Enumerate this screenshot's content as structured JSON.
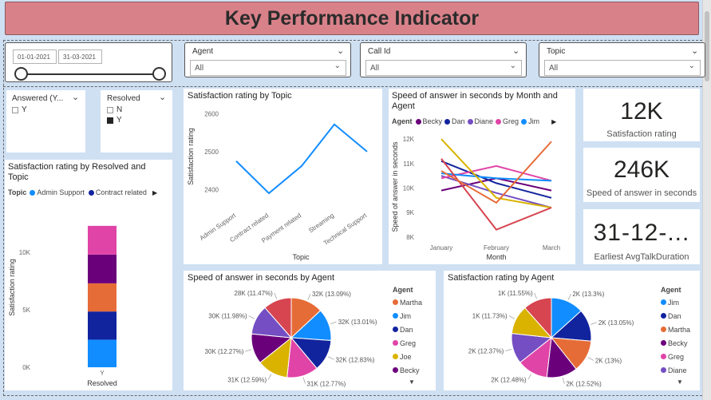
{
  "header": {
    "title": "Key Performance Indicator"
  },
  "date_slicer": {
    "start": "01-01-2021",
    "end": "31-03-2021"
  },
  "filters": {
    "agent": {
      "label": "Agent",
      "value": "All"
    },
    "callid": {
      "label": "Call Id",
      "value": "All"
    },
    "topic": {
      "label": "Topic",
      "value": "All"
    }
  },
  "answered_slicer": {
    "title": "Answered (Y...",
    "options": [
      "Y"
    ]
  },
  "resolved_slicer": {
    "title": "Resolved",
    "options": [
      "N",
      "Y"
    ],
    "selected": "Y"
  },
  "kpis": [
    {
      "value": "12K",
      "label": "Satisfaction rating"
    },
    {
      "value": "246K",
      "label": "Speed of answer in seconds"
    },
    {
      "value": "31-12-...",
      "label": "Earliest AvgTalkDuration"
    }
  ],
  "chart_data": [
    {
      "id": "stacked",
      "type": "bar",
      "title": "Satisfaction rating by Resolved and Topic",
      "legend_title": "Topic",
      "legend": [
        "Admin Support",
        "Contract related"
      ],
      "xlabel": "Resolved",
      "ylabel": "Satisfaction rating",
      "categories": [
        "Y"
      ],
      "ylim": [
        0,
        12500
      ],
      "yticks": [
        "0K",
        "5K",
        "10K"
      ],
      "series": [
        {
          "name": "Admin Support",
          "values": [
            2400
          ],
          "color": "#118DFF"
        },
        {
          "name": "Contract related",
          "values": [
            2450
          ],
          "color": "#12239E"
        },
        {
          "name": "",
          "values": [
            2450
          ],
          "color": "#E66C37"
        },
        {
          "name": "",
          "values": [
            2500
          ],
          "color": "#6B007B"
        },
        {
          "name": "",
          "values": [
            2500
          ],
          "color": "#E044A7"
        }
      ]
    },
    {
      "id": "topicline",
      "type": "line",
      "title": "Satisfaction rating by Topic",
      "xlabel": "Topic",
      "ylabel": "Satisfaction rating",
      "categories": [
        "Admin Support",
        "Contract related",
        "Payment related",
        "Streaming",
        "Technical Support"
      ],
      "values": [
        2475,
        2390,
        2462,
        2572,
        2500
      ],
      "ylim": [
        2350,
        2620
      ],
      "yticks": [
        2400,
        2500,
        2600
      ],
      "color": "#118DFF"
    },
    {
      "id": "monthline",
      "type": "line",
      "title": "Speed of answer in seconds by Month and Agent",
      "legend_title": "Agent",
      "xlabel": "Month",
      "ylabel": "Speed of answer in seconds",
      "categories": [
        "January",
        "February",
        "March"
      ],
      "ylim": [
        7800,
        12300
      ],
      "yticks": [
        "8K",
        "9K",
        "10K",
        "11K",
        "12K"
      ],
      "series": [
        {
          "name": "Becky",
          "values": [
            9900,
            10400,
            9900
          ],
          "color": "#6B007B"
        },
        {
          "name": "Dan",
          "values": [
            11100,
            10200,
            9600
          ],
          "color": "#12239E"
        },
        {
          "name": "Diane",
          "values": [
            10500,
            9800,
            9200
          ],
          "color": "#744EC2"
        },
        {
          "name": "Greg",
          "values": [
            10400,
            10900,
            10300
          ],
          "color": "#E044A7"
        },
        {
          "name": "Jim",
          "values": [
            10600,
            10400,
            10300
          ],
          "color": "#118DFF"
        },
        {
          "name": "",
          "values": [
            12000,
            9600,
            9200
          ],
          "color": "#D9B300"
        },
        {
          "name": "",
          "values": [
            11200,
            8300,
            9200
          ],
          "color": "#D64550"
        },
        {
          "name": "",
          "values": [
            10700,
            9400,
            11900
          ],
          "color": "#E66C37"
        }
      ]
    },
    {
      "id": "pie1",
      "type": "pie",
      "title": "Speed of answer in seconds by Agent",
      "legend_title": "Agent",
      "legend": [
        "Martha",
        "Jim",
        "Dan",
        "Greg",
        "Joe",
        "Becky"
      ],
      "legend_colors": [
        "#E66C37",
        "#118DFF",
        "#12239E",
        "#E044A7",
        "#D9B300",
        "#6B007B"
      ],
      "slices": [
        {
          "label": "32K (13.09%)",
          "value": 13.09,
          "color": "#E66C37"
        },
        {
          "label": "32K (13.01%)",
          "value": 13.01,
          "color": "#118DFF"
        },
        {
          "label": "32K (12.83%)",
          "value": 12.83,
          "color": "#12239E"
        },
        {
          "label": "31K (12.77%)",
          "value": 12.77,
          "color": "#E044A7"
        },
        {
          "label": "31K (12.59%)",
          "value": 12.59,
          "color": "#D9B300"
        },
        {
          "label": "30K (12.27%)",
          "value": 12.27,
          "color": "#6B007B"
        },
        {
          "label": "30K (11.98%)",
          "value": 11.98,
          "color": "#744EC2"
        },
        {
          "label": "28K (11.47%)",
          "value": 11.47,
          "color": "#D64550"
        }
      ]
    },
    {
      "id": "pie2",
      "type": "pie",
      "title": "Satisfaction rating by Agent",
      "legend_title": "Agent",
      "legend": [
        "Jim",
        "Dan",
        "Martha",
        "Becky",
        "Greg",
        "Diane"
      ],
      "legend_colors": [
        "#118DFF",
        "#12239E",
        "#E66C37",
        "#6B007B",
        "#E044A7",
        "#744EC2"
      ],
      "slices": [
        {
          "label": "2K (13.3%)",
          "value": 13.3,
          "color": "#118DFF"
        },
        {
          "label": "2K (13.05%)",
          "value": 13.05,
          "color": "#12239E"
        },
        {
          "label": "2K (13%)",
          "value": 13.0,
          "color": "#E66C37"
        },
        {
          "label": "2K (12.52%)",
          "value": 12.52,
          "color": "#6B007B"
        },
        {
          "label": "2K (12.48%)",
          "value": 12.48,
          "color": "#E044A7"
        },
        {
          "label": "2K (12.37%)",
          "value": 12.37,
          "color": "#744EC2"
        },
        {
          "label": "1K (11.73%)",
          "value": 11.73,
          "color": "#D9B300"
        },
        {
          "label": "1K (11.55%)",
          "value": 11.55,
          "color": "#D64550"
        }
      ]
    }
  ]
}
